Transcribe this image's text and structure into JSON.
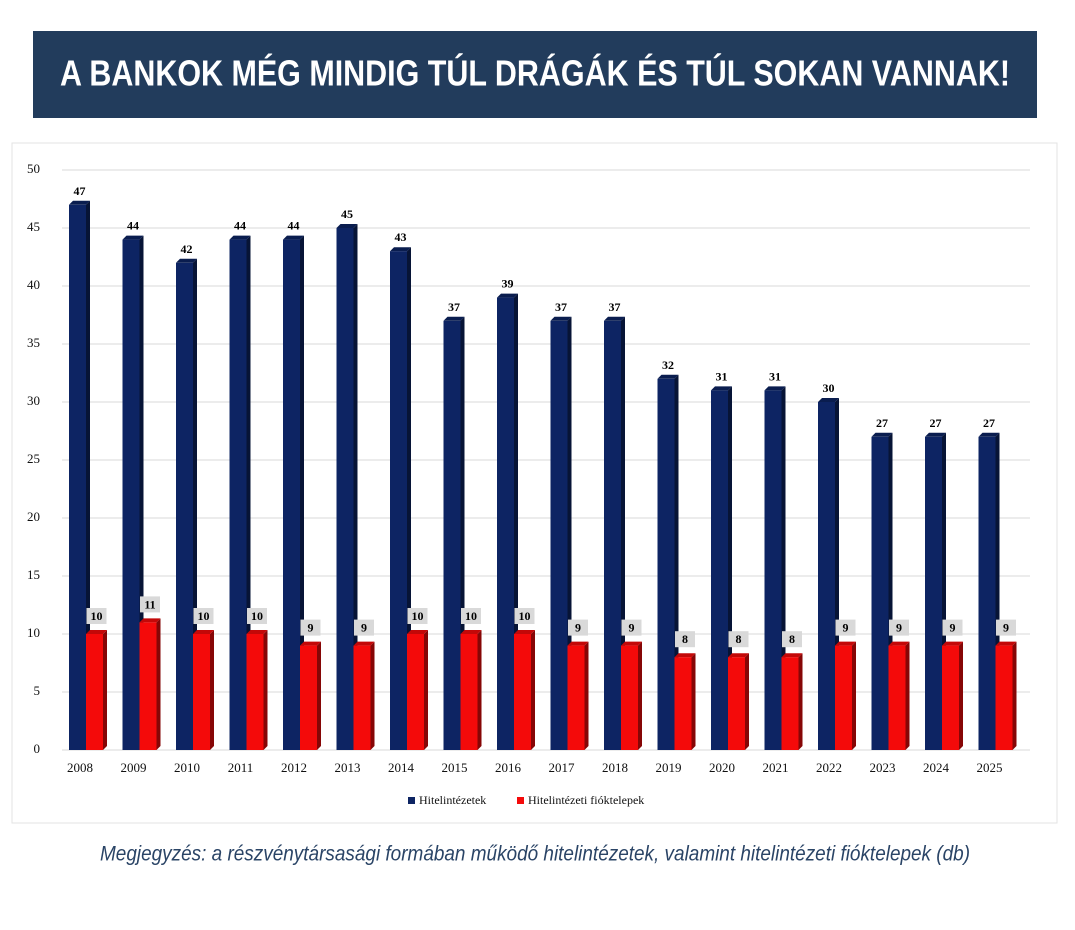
{
  "chart_data": {
    "type": "bar",
    "title": "A BANKOK MÉG MINDIG TÚL DRÁGÁK ÉS TÚL SOKAN VANNAK!",
    "note": "Megjegyzés: a részvénytársasági formában működő hitelintézetek, valamint hitelintézeti fióktelepek (db)",
    "categories": [
      "2008",
      "2009",
      "2010",
      "2011",
      "2012",
      "2013",
      "2014",
      "2015",
      "2016",
      "2017",
      "2018",
      "2019",
      "2020",
      "2021",
      "2022",
      "2023",
      "2024",
      "2025"
    ],
    "series": [
      {
        "name": "Hitelintézetek",
        "color": "#0d2463",
        "values": [
          47,
          44,
          42,
          44,
          44,
          45,
          43,
          37,
          39,
          37,
          37,
          32,
          31,
          31,
          30,
          27,
          27,
          27
        ]
      },
      {
        "name": "Hitelintézeti fióktelepek",
        "color": "#f40a0a",
        "values": [
          10,
          11,
          10,
          10,
          9,
          9,
          10,
          10,
          10,
          9,
          9,
          8,
          8,
          8,
          9,
          9,
          9,
          9
        ]
      }
    ],
    "ylim": [
      0,
      50
    ],
    "yticks": [
      0,
      5,
      10,
      15,
      20,
      25,
      30,
      35,
      40,
      45,
      50
    ],
    "grid": true,
    "legend": "bottom"
  }
}
